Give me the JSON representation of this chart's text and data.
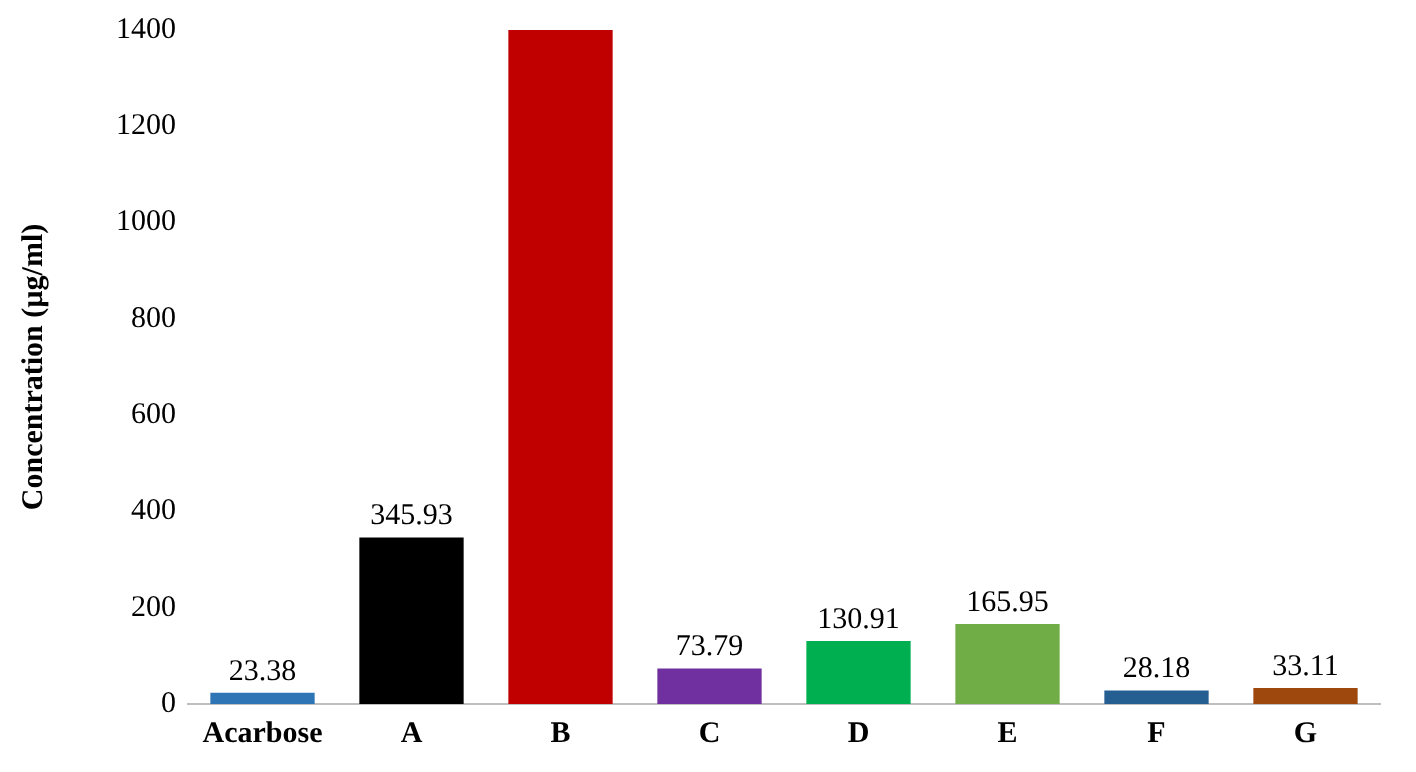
{
  "chart_data": {
    "type": "bar",
    "ylabel": "Concentration (µg/ml)",
    "categories": [
      "Acarbose",
      "A",
      "B",
      "C",
      "D",
      "E",
      "F",
      "G"
    ],
    "values": [
      23.38,
      345.93,
      1400,
      73.79,
      130.91,
      165.95,
      28.18,
      33.11
    ],
    "value_labels": [
      "23.38",
      "345.93",
      null,
      "73.79",
      "130.91",
      "165.95",
      "28.18",
      "33.11"
    ],
    "colors": [
      "#2e75b6",
      "#000000",
      "#c00000",
      "#7030a0",
      "#00b050",
      "#70ad47",
      "#255e91",
      "#9e480e"
    ],
    "ylim": [
      0,
      1400
    ],
    "yticks": [
      0,
      200,
      400,
      600,
      800,
      1000,
      1200,
      1400
    ],
    "grid": false,
    "legend": false
  }
}
